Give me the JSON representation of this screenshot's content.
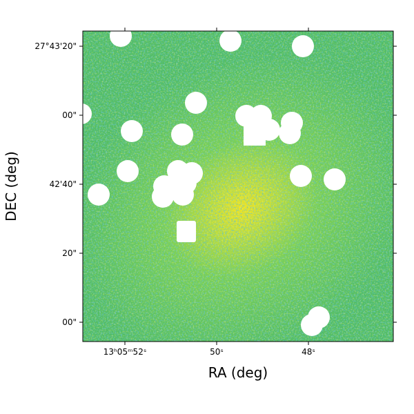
{
  "axes": {
    "xlabel": "RA (deg)",
    "ylabel": "DEC (deg)",
    "xticks": [
      "13ʰ05ᵐ52ˢ",
      "50ˢ",
      "48ˢ"
    ],
    "yticks": [
      "27°43'20\"",
      "00\"",
      "42'40\"",
      "20\"",
      "00\""
    ]
  }
}
